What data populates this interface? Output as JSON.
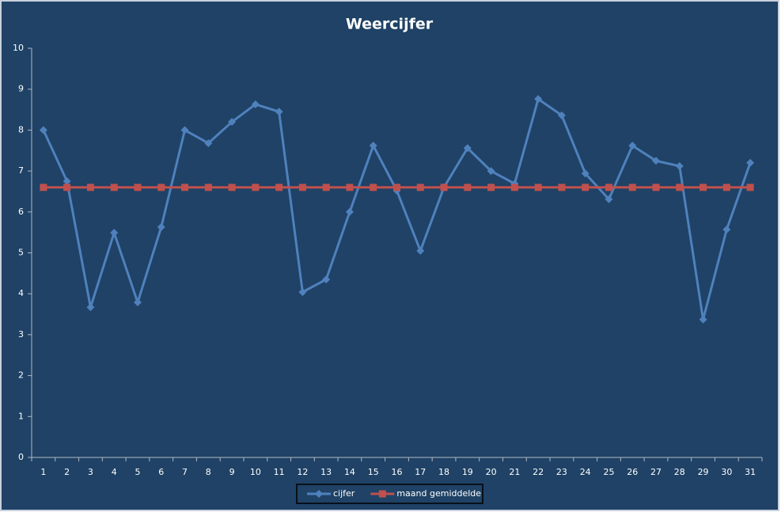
{
  "chart_data": {
    "type": "line",
    "title": "Weercijfer",
    "categories": [
      "1",
      "2",
      "3",
      "4",
      "5",
      "6",
      "7",
      "8",
      "9",
      "10",
      "11",
      "12",
      "13",
      "14",
      "15",
      "16",
      "17",
      "18",
      "19",
      "20",
      "21",
      "22",
      "23",
      "24",
      "25",
      "26",
      "27",
      "28",
      "29",
      "30",
      "31"
    ],
    "series": [
      {
        "name": "cijfer",
        "color": "#4f81bd",
        "marker": "diamond",
        "values": [
          8.0,
          6.75,
          3.67,
          5.49,
          3.79,
          5.63,
          8.0,
          7.68,
          8.2,
          8.63,
          8.45,
          4.04,
          4.35,
          6.0,
          7.62,
          6.52,
          5.05,
          6.6,
          7.56,
          7.0,
          6.69,
          8.76,
          8.36,
          6.94,
          6.31,
          7.62,
          7.25,
          7.12,
          3.37,
          5.57,
          7.2
        ]
      },
      {
        "name": "maand gemiddelde",
        "color": "#c0504d",
        "marker": "square",
        "values": [
          6.6,
          6.6,
          6.6,
          6.6,
          6.6,
          6.6,
          6.6,
          6.6,
          6.6,
          6.6,
          6.6,
          6.6,
          6.6,
          6.6,
          6.6,
          6.6,
          6.6,
          6.6,
          6.6,
          6.6,
          6.6,
          6.6,
          6.6,
          6.6,
          6.6,
          6.6,
          6.6,
          6.6,
          6.6,
          6.6,
          6.6
        ]
      }
    ],
    "ylim": [
      0,
      10
    ],
    "yticks": [
      0,
      1,
      2,
      3,
      4,
      5,
      6,
      7,
      8,
      9,
      10
    ],
    "grid": false,
    "legend": "bottom"
  }
}
